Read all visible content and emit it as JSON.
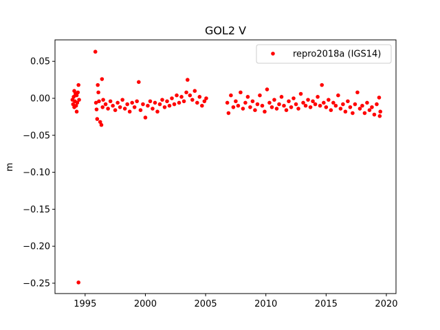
{
  "chart_data": {
    "type": "scatter",
    "title": "GOL2 V",
    "xlabel": "",
    "ylabel": "m",
    "xlim": [
      1992.5,
      2020.8
    ],
    "ylim": [
      -0.264,
      0.079
    ],
    "x_ticks": [
      1995,
      2000,
      2005,
      2010,
      2015,
      2020
    ],
    "x_tick_labels": [
      "1995",
      "2000",
      "2005",
      "2010",
      "2015",
      "2020"
    ],
    "y_ticks": [
      0.05,
      0.0,
      -0.05,
      -0.1,
      -0.15,
      -0.2,
      -0.25
    ],
    "y_tick_labels": [
      "0.05",
      "0.00",
      "−0.05",
      "−0.10",
      "−0.15",
      "−0.20",
      "−0.25"
    ],
    "grid": false,
    "legend_position": "top-right",
    "series": [
      {
        "name": "repro2018a (IGS14)",
        "color": "#ff0000",
        "marker": "circle",
        "points": [
          [
            1993.95,
            -0.002
          ],
          [
            1994.0,
            -0.008
          ],
          [
            1994.05,
            0.002
          ],
          [
            1994.1,
            -0.012
          ],
          [
            1994.15,
            -0.004
          ],
          [
            1994.2,
            0.006
          ],
          [
            1994.25,
            -0.01
          ],
          [
            1994.3,
            0.004
          ],
          [
            1994.35,
            -0.006
          ],
          [
            1994.4,
            0.008
          ],
          [
            1994.45,
            0.018
          ],
          [
            1994.5,
            -0.002
          ],
          [
            1994.45,
            -0.249
          ],
          [
            1994.3,
            -0.018
          ],
          [
            1994.1,
            0.01
          ],
          [
            1995.85,
            0.063
          ],
          [
            1995.9,
            -0.006
          ],
          [
            1995.95,
            -0.015
          ],
          [
            1996.0,
            -0.028
          ],
          [
            1996.05,
            0.018
          ],
          [
            1996.1,
            0.008
          ],
          [
            1996.15,
            -0.004
          ],
          [
            1996.25,
            -0.032
          ],
          [
            1996.35,
            -0.036
          ],
          [
            1996.4,
            0.026
          ],
          [
            1996.45,
            -0.012
          ],
          [
            1996.5,
            -0.002
          ],
          [
            1996.7,
            -0.008
          ],
          [
            1996.9,
            -0.014
          ],
          [
            1997.1,
            -0.004
          ],
          [
            1997.3,
            -0.01
          ],
          [
            1997.5,
            -0.016
          ],
          [
            1997.7,
            -0.006
          ],
          [
            1997.9,
            -0.012
          ],
          [
            1998.1,
            -0.002
          ],
          [
            1998.3,
            -0.014
          ],
          [
            1998.5,
            -0.008
          ],
          [
            1998.7,
            -0.018
          ],
          [
            1998.9,
            -0.006
          ],
          [
            1999.1,
            -0.012
          ],
          [
            1999.3,
            -0.004
          ],
          [
            1999.45,
            0.022
          ],
          [
            1999.6,
            -0.016
          ],
          [
            1999.8,
            -0.008
          ],
          [
            2000.0,
            -0.026
          ],
          [
            2000.2,
            -0.01
          ],
          [
            2000.4,
            -0.004
          ],
          [
            2000.6,
            -0.014
          ],
          [
            2000.8,
            -0.006
          ],
          [
            2001.0,
            -0.018
          ],
          [
            2001.2,
            -0.008
          ],
          [
            2001.4,
            -0.002
          ],
          [
            2001.6,
            -0.012
          ],
          [
            2001.8,
            -0.004
          ],
          [
            2002.0,
            -0.01
          ],
          [
            2002.2,
            0.0
          ],
          [
            2002.4,
            -0.008
          ],
          [
            2002.6,
            0.004
          ],
          [
            2002.8,
            -0.006
          ],
          [
            2003.0,
            0.002
          ],
          [
            2003.2,
            -0.004
          ],
          [
            2003.4,
            0.008
          ],
          [
            2003.5,
            0.025
          ],
          [
            2003.7,
            0.004
          ],
          [
            2003.9,
            -0.002
          ],
          [
            2004.1,
            0.01
          ],
          [
            2004.3,
            -0.006
          ],
          [
            2004.5,
            0.002
          ],
          [
            2004.7,
            -0.01
          ],
          [
            2004.9,
            -0.004
          ],
          [
            2005.05,
            0.0
          ],
          [
            2006.8,
            -0.006
          ],
          [
            2006.9,
            -0.02
          ],
          [
            2007.1,
            0.004
          ],
          [
            2007.3,
            -0.012
          ],
          [
            2007.5,
            -0.004
          ],
          [
            2007.7,
            -0.01
          ],
          [
            2007.9,
            0.008
          ],
          [
            2008.1,
            -0.014
          ],
          [
            2008.3,
            -0.006
          ],
          [
            2008.5,
            0.002
          ],
          [
            2008.7,
            -0.012
          ],
          [
            2008.9,
            -0.004
          ],
          [
            2009.1,
            -0.016
          ],
          [
            2009.3,
            -0.008
          ],
          [
            2009.5,
            0.004
          ],
          [
            2009.7,
            -0.01
          ],
          [
            2009.9,
            -0.018
          ],
          [
            2010.1,
            0.012
          ],
          [
            2010.3,
            -0.006
          ],
          [
            2010.5,
            -0.012
          ],
          [
            2010.7,
            -0.002
          ],
          [
            2010.9,
            -0.014
          ],
          [
            2011.1,
            -0.008
          ],
          [
            2011.3,
            0.002
          ],
          [
            2011.5,
            -0.01
          ],
          [
            2011.7,
            -0.016
          ],
          [
            2011.9,
            -0.004
          ],
          [
            2012.1,
            -0.012
          ],
          [
            2012.3,
            0.0
          ],
          [
            2012.5,
            -0.008
          ],
          [
            2012.7,
            -0.014
          ],
          [
            2012.9,
            0.006
          ],
          [
            2013.1,
            -0.006
          ],
          [
            2013.3,
            -0.01
          ],
          [
            2013.5,
            -0.002
          ],
          [
            2013.7,
            -0.012
          ],
          [
            2013.9,
            -0.004
          ],
          [
            2014.1,
            -0.008
          ],
          [
            2014.3,
            0.002
          ],
          [
            2014.5,
            -0.01
          ],
          [
            2014.65,
            0.018
          ],
          [
            2014.8,
            -0.006
          ],
          [
            2015.0,
            -0.012
          ],
          [
            2015.2,
            -0.002
          ],
          [
            2015.4,
            -0.016
          ],
          [
            2015.6,
            -0.006
          ],
          [
            2015.8,
            -0.01
          ],
          [
            2016.0,
            0.004
          ],
          [
            2016.2,
            -0.014
          ],
          [
            2016.4,
            -0.008
          ],
          [
            2016.6,
            -0.018
          ],
          [
            2016.8,
            -0.004
          ],
          [
            2017.0,
            -0.012
          ],
          [
            2017.2,
            -0.02
          ],
          [
            2017.4,
            -0.008
          ],
          [
            2017.6,
            0.008
          ],
          [
            2017.8,
            -0.014
          ],
          [
            2018.0,
            -0.01
          ],
          [
            2018.2,
            -0.02
          ],
          [
            2018.4,
            -0.006
          ],
          [
            2018.6,
            -0.016
          ],
          [
            2018.8,
            -0.012
          ],
          [
            2019.0,
            -0.022
          ],
          [
            2019.2,
            -0.008
          ],
          [
            2019.4,
            0.001
          ],
          [
            2019.45,
            -0.024
          ],
          [
            2019.5,
            -0.018
          ]
        ]
      }
    ]
  }
}
